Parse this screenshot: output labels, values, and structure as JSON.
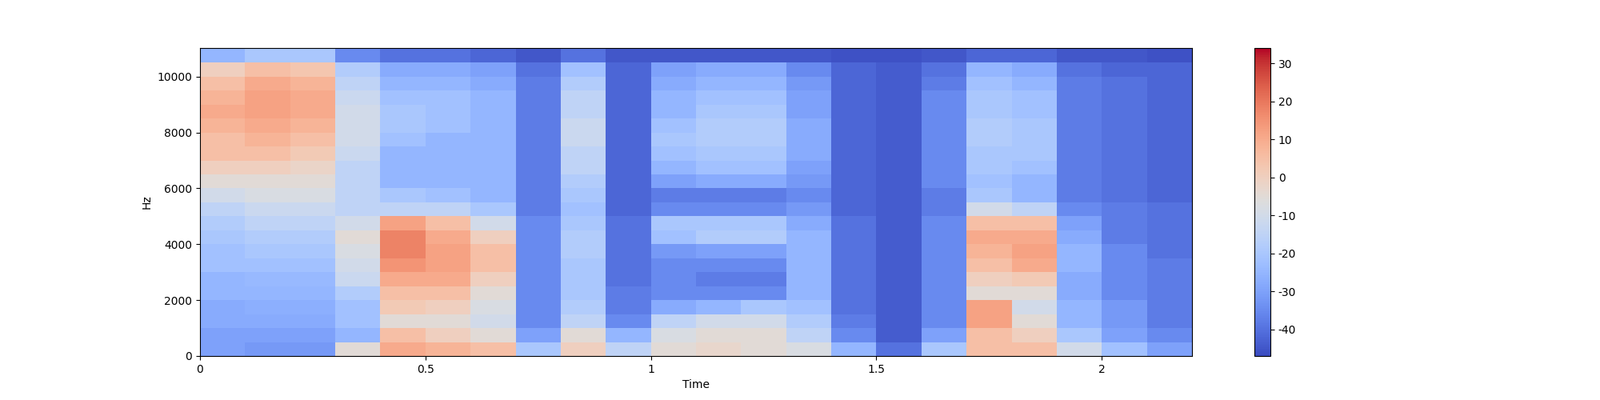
{
  "chart_data": {
    "type": "heatmap",
    "x_label": "Time",
    "y_label": "Hz",
    "xlim": [
      0,
      2.2
    ],
    "ylim": [
      0,
      11025
    ],
    "xticks": [
      0,
      0.5,
      1,
      1.5,
      2
    ],
    "yticks": [
      0,
      2000,
      4000,
      6000,
      8000,
      10000
    ],
    "x_edges": [
      0,
      0.1,
      0.2,
      0.3,
      0.4,
      0.5,
      0.6,
      0.7,
      0.8,
      0.9,
      1.0,
      1.1,
      1.2,
      1.3,
      1.4,
      1.5,
      1.6,
      1.7,
      1.8,
      1.9,
      2.0,
      2.1,
      2.2
    ],
    "y_edges": [
      0,
      500,
      1000,
      1500,
      2000,
      2500,
      3000,
      3500,
      4000,
      4500,
      5000,
      5500,
      6000,
      6500,
      7000,
      7500,
      8000,
      8500,
      9000,
      9500,
      10000,
      10500,
      11025
    ],
    "cells": [
      [
        -30,
        -30,
        -28,
        -28,
        -25,
        -25,
        -22,
        -22,
        -20,
        -18,
        -15,
        -10,
        -5,
        0,
        5,
        5,
        8,
        10,
        8,
        5,
        0,
        -25
      ],
      [
        -32,
        -30,
        -28,
        -27,
        -25,
        -24,
        -22,
        -20,
        -18,
        -15,
        -12,
        -8,
        -5,
        0,
        5,
        8,
        10,
        12,
        12,
        10,
        5,
        -20
      ],
      [
        -32,
        -30,
        -28,
        -27,
        -25,
        -24,
        -22,
        -20,
        -18,
        -15,
        -12,
        -8,
        -5,
        -2,
        2,
        5,
        8,
        10,
        10,
        8,
        3,
        -20
      ],
      [
        -5,
        -25,
        -22,
        -22,
        -18,
        -12,
        -10,
        -8,
        -5,
        -10,
        -15,
        -15,
        -15,
        -15,
        -12,
        -10,
        -10,
        -10,
        -12,
        -15,
        -18,
        -35
      ],
      [
        10,
        5,
        -5,
        2,
        5,
        10,
        15,
        18,
        18,
        12,
        -15,
        -20,
        -25,
        -25,
        -25,
        -22,
        -20,
        -20,
        -22,
        -25,
        -28,
        -40
      ],
      [
        8,
        0,
        -5,
        0,
        5,
        10,
        12,
        12,
        10,
        5,
        -15,
        -22,
        -25,
        -25,
        -25,
        -25,
        -22,
        -22,
        -22,
        -25,
        -28,
        -40
      ],
      [
        5,
        -5,
        -10,
        -8,
        -5,
        0,
        5,
        5,
        0,
        -10,
        -20,
        -25,
        -25,
        -25,
        -25,
        -25,
        -25,
        -25,
        -25,
        -28,
        -30,
        -42
      ],
      [
        -20,
        -30,
        -35,
        -35,
        -35,
        -35,
        -35,
        -35,
        -35,
        -35,
        -38,
        -38,
        -38,
        -38,
        -38,
        -38,
        -38,
        -38,
        -38,
        -38,
        -40,
        -45
      ],
      [
        0,
        -5,
        -15,
        -18,
        -20,
        -20,
        -20,
        -18,
        -18,
        -20,
        -22,
        -20,
        -18,
        -15,
        -15,
        -12,
        -12,
        -15,
        -15,
        -18,
        -22,
        -40
      ],
      [
        -15,
        -25,
        -35,
        -38,
        -38,
        -40,
        -40,
        -40,
        -40,
        -40,
        -42,
        -42,
        -42,
        -42,
        -42,
        -42,
        -42,
        -42,
        -42,
        -42,
        -42,
        -45
      ],
      [
        -5,
        -8,
        -15,
        -28,
        -35,
        -35,
        -35,
        -32,
        -22,
        -20,
        -35,
        -38,
        -30,
        -25,
        -22,
        -20,
        -22,
        -25,
        -25,
        -28,
        -30,
        -45
      ],
      [
        -3,
        -5,
        -10,
        -25,
        -35,
        -38,
        -35,
        -30,
        -18,
        -20,
        -35,
        -38,
        -28,
        -22,
        -20,
        -18,
        -18,
        -20,
        -22,
        -25,
        -28,
        -45
      ],
      [
        -5,
        -5,
        -10,
        -20,
        -35,
        -38,
        -35,
        -30,
        -18,
        -20,
        -35,
        -38,
        -28,
        -22,
        -20,
        -18,
        -18,
        -20,
        -22,
        -25,
        -28,
        -45
      ],
      [
        -8,
        -15,
        -18,
        -22,
        -25,
        -25,
        -25,
        -25,
        -25,
        -28,
        -32,
        -35,
        -32,
        -30,
        -28,
        -28,
        -28,
        -30,
        -30,
        -32,
        -35,
        -45
      ],
      [
        -25,
        -35,
        -38,
        -40,
        -40,
        -40,
        -40,
        -40,
        -40,
        -40,
        -42,
        -42,
        -42,
        -42,
        -42,
        -42,
        -42,
        -42,
        -42,
        -42,
        -42,
        -46
      ],
      [
        -40,
        -44,
        -44,
        -44,
        -44,
        -44,
        -44,
        -44,
        -44,
        -44,
        -44,
        -44,
        -44,
        -44,
        -44,
        -44,
        -44,
        -44,
        -44,
        -44,
        -44,
        -46
      ],
      [
        -20,
        -30,
        -35,
        -35,
        -35,
        -35,
        -35,
        -35,
        -35,
        -35,
        -38,
        -38,
        -35,
        -35,
        -35,
        -35,
        -35,
        -35,
        -35,
        -38,
        -40,
        -45
      ],
      [
        5,
        5,
        12,
        12,
        -5,
        0,
        5,
        8,
        10,
        5,
        -10,
        -20,
        -22,
        -20,
        -20,
        -18,
        -18,
        -20,
        -20,
        -22,
        -25,
        -42
      ],
      [
        5,
        0,
        -5,
        -10,
        -5,
        2,
        10,
        12,
        10,
        5,
        -15,
        -25,
        -25,
        -22,
        -20,
        -20,
        -20,
        -22,
        -22,
        -25,
        -28,
        -42
      ],
      [
        -10,
        -20,
        -25,
        -25,
        -28,
        -28,
        -25,
        -25,
        -28,
        -30,
        -35,
        -38,
        -38,
        -38,
        -38,
        -38,
        -38,
        -38,
        -38,
        -38,
        -40,
        -45
      ],
      [
        -22,
        -30,
        -32,
        -32,
        -35,
        -35,
        -35,
        -35,
        -38,
        -38,
        -38,
        -40,
        -40,
        -40,
        -40,
        -40,
        -40,
        -40,
        -40,
        -40,
        -42,
        -45
      ],
      [
        -30,
        -35,
        -38,
        -38,
        -38,
        -38,
        -38,
        -40,
        -40,
        -40,
        -40,
        -42,
        -42,
        -42,
        -42,
        -42,
        -42,
        -42,
        -42,
        -42,
        -42,
        -46
      ]
    ],
    "colorbar": {
      "range": [
        -47,
        34
      ],
      "ticks": [
        -40,
        -30,
        -20,
        -10,
        0,
        10,
        20,
        30
      ]
    }
  }
}
